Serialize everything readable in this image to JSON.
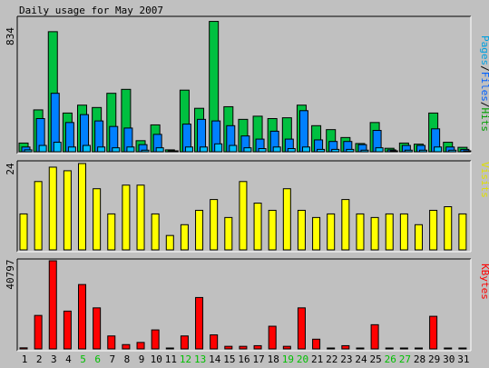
{
  "colors": {
    "background": "#c0c0c0",
    "hits": "#00c040",
    "files": "#0080ff",
    "pages": "#00c0ff",
    "visits": "#ffff00",
    "kbytes": "#ff0000",
    "weekend_day": "#00c000",
    "weekday_day": "#000000",
    "label_pages": "#00a0e0",
    "label_files": "#0060ff",
    "label_hits": "#00a000",
    "label_visits": "#e0e000",
    "label_kbytes": "#ff0000"
  },
  "chart_data": [
    {
      "type": "bar",
      "title": "Daily usage for May 2007",
      "ylabel_left": "834",
      "ymax": 834,
      "legend": [
        "Pages",
        "Files",
        "Hits"
      ],
      "categories": [
        "1",
        "2",
        "3",
        "4",
        "5",
        "6",
        "7",
        "8",
        "9",
        "10",
        "11",
        "12",
        "13",
        "14",
        "15",
        "16",
        "17",
        "18",
        "19",
        "20",
        "21",
        "22",
        "23",
        "24",
        "25",
        "26",
        "27",
        "28",
        "29",
        "30",
        "31"
      ],
      "weekend": [
        5,
        6,
        12,
        13,
        19,
        20,
        26,
        27
      ],
      "series": [
        {
          "name": "Hits",
          "values": [
            55,
            265,
            760,
            245,
            295,
            280,
            370,
            395,
            70,
            170,
            12,
            390,
            275,
            825,
            285,
            205,
            225,
            210,
            215,
            295,
            165,
            140,
            90,
            52,
            185,
            22,
            55,
            48,
            245,
            60,
            28
          ]
        },
        {
          "name": "Files",
          "values": [
            30,
            210,
            370,
            185,
            235,
            195,
            160,
            150,
            45,
            110,
            5,
            175,
            205,
            195,
            165,
            100,
            80,
            130,
            80,
            260,
            75,
            65,
            65,
            45,
            135,
            12,
            40,
            40,
            145,
            30,
            15
          ]
        },
        {
          "name": "Pages",
          "values": [
            12,
            40,
            60,
            30,
            40,
            30,
            25,
            30,
            10,
            25,
            3,
            30,
            30,
            50,
            40,
            25,
            20,
            30,
            20,
            30,
            15,
            15,
            15,
            10,
            25,
            5,
            10,
            10,
            30,
            10,
            5
          ]
        }
      ]
    },
    {
      "type": "bar",
      "ylabel_left": "24",
      "ymax": 24,
      "legend": [
        "Visits"
      ],
      "series": [
        {
          "name": "Visits",
          "values": [
            10,
            19,
            23,
            22,
            24,
            17,
            10,
            18,
            18,
            10,
            4,
            7,
            11,
            14,
            9,
            19,
            13,
            11,
            17,
            11,
            9,
            10,
            14,
            10,
            9,
            10,
            10,
            7,
            11,
            12,
            10
          ]
        }
      ]
    },
    {
      "type": "bar",
      "ylabel_left": "40797",
      "ymax": 40797,
      "legend": [
        "KBytes"
      ],
      "series": [
        {
          "name": "KBytes",
          "values": [
            500,
            15500,
            40797,
            17500,
            29800,
            19000,
            6000,
            2000,
            3000,
            8800,
            300,
            6000,
            23800,
            6500,
            1200,
            1200,
            1500,
            10500,
            1200,
            19000,
            4500,
            400,
            1500,
            300,
            11200,
            300,
            300,
            300,
            15100,
            300,
            300
          ]
        }
      ]
    }
  ]
}
